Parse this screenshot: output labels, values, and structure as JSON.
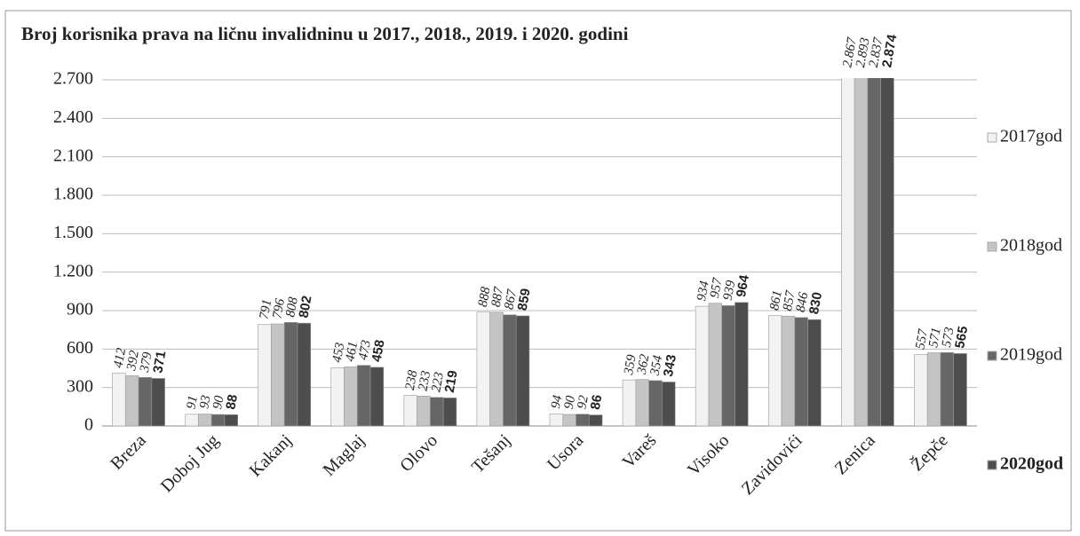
{
  "chart_data": {
    "type": "bar",
    "title": "Broj korisnika prava na ličnu invalidninu  u 2017., 2018., 2019. i 2020. godini",
    "categories": [
      "Breza",
      "Doboj Jug",
      "Kakanj",
      "Maglaj",
      "Olovo",
      "Tešanj",
      "Usora",
      "Vareš",
      "Visoko",
      "Zavidovići",
      "Zenica",
      "Žepče"
    ],
    "series": [
      {
        "name": "2017god",
        "color": "#f2f2f2",
        "values": [
          412,
          91,
          791,
          453,
          238,
          888,
          94,
          359,
          934,
          861,
          2867,
          557
        ],
        "value_labels": [
          "412",
          "91",
          "791",
          "453",
          "238",
          "888",
          "94",
          "359",
          "934",
          "861",
          "2.867",
          "557"
        ]
      },
      {
        "name": "2018god",
        "color": "#c4c4c4",
        "values": [
          392,
          93,
          796,
          461,
          233,
          887,
          90,
          362,
          957,
          857,
          2893,
          571
        ],
        "value_labels": [
          "392",
          "93",
          "796",
          "461",
          "233",
          "887",
          "90",
          "362",
          "957",
          "857",
          "2.893",
          "571"
        ]
      },
      {
        "name": "2019god",
        "color": "#666666",
        "values": [
          379,
          90,
          808,
          473,
          223,
          867,
          92,
          354,
          939,
          846,
          2837,
          573
        ],
        "value_labels": [
          "379",
          "90",
          "808",
          "473",
          "223",
          "867",
          "92",
          "354",
          "939",
          "846",
          "2.837",
          "573"
        ]
      },
      {
        "name": "2020god",
        "color": "#4d4d4d",
        "values": [
          371,
          88,
          802,
          458,
          219,
          859,
          86,
          343,
          964,
          830,
          2874,
          565
        ],
        "value_labels": [
          "371",
          "88",
          "802",
          "458",
          "219",
          "859",
          "86",
          "343",
          "964",
          "830",
          "2.874",
          "565"
        ]
      }
    ],
    "ylim": [
      0,
      2700
    ],
    "yticks": [
      0,
      300,
      600,
      900,
      {
        "value": 1200,
        "label": "1.200"
      },
      {
        "value": 1500,
        "label": "1.500"
      },
      {
        "value": 1800,
        "label": "1.800"
      },
      {
        "value": 2100,
        "label": "2.100"
      },
      {
        "value": 2400,
        "label": "2.400"
      },
      {
        "value": 2700,
        "label": "2.700"
      }
    ],
    "grid": true
  }
}
